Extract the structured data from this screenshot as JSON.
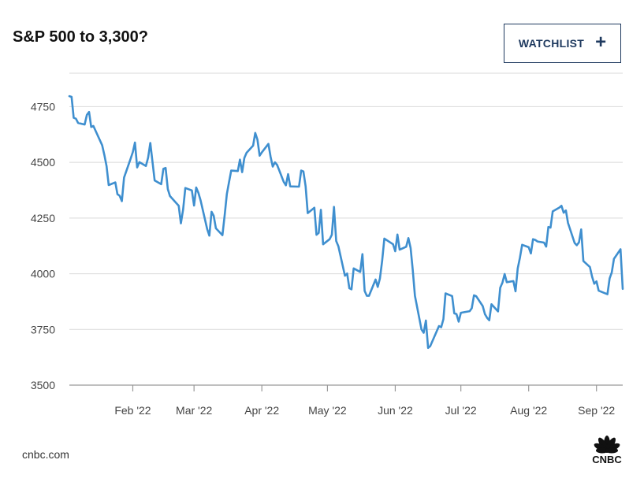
{
  "header": {
    "title": "S&P 500 to 3,300?",
    "watchlist_label": "WATCHLIST",
    "plus_symbol": "+"
  },
  "footer": {
    "source": "cnbc.com",
    "logo_text": "CNBC"
  },
  "colors": {
    "line": "#3f8fcf",
    "grid": "#d9d9d9",
    "axis": "#999999",
    "button_border": "#1f3a5f"
  },
  "chart_data": {
    "type": "line",
    "title": "S&P 500 to 3,300?",
    "xlabel": "",
    "ylabel": "",
    "ylim": [
      3500,
      4900
    ],
    "yticks": [
      3500,
      3750,
      4000,
      4250,
      4500,
      4750
    ],
    "ytick_labels": [
      "3500",
      "3750",
      "4000",
      "4250",
      "4500",
      "4750"
    ],
    "grid": true,
    "x_start": "2022-01-03",
    "x_end": "2022-09-13",
    "xticks": [
      {
        "label": "Feb '22",
        "date": "2022-02-01"
      },
      {
        "label": "Mar '22",
        "date": "2022-03-01"
      },
      {
        "label": "Apr '22",
        "date": "2022-04-01"
      },
      {
        "label": "May '22",
        "date": "2022-05-01"
      },
      {
        "label": "Jun '22",
        "date": "2022-06-01"
      },
      {
        "label": "Jul '22",
        "date": "2022-07-01"
      },
      {
        "label": "Aug '22",
        "date": "2022-08-01"
      },
      {
        "label": "Sep '22",
        "date": "2022-09-01"
      }
    ],
    "series": [
      {
        "points": [
          [
            "2022-01-03",
            4797
          ],
          [
            "2022-01-04",
            4794
          ],
          [
            "2022-01-05",
            4700
          ],
          [
            "2022-01-06",
            4696
          ],
          [
            "2022-01-07",
            4677
          ],
          [
            "2022-01-10",
            4670
          ],
          [
            "2022-01-11",
            4713
          ],
          [
            "2022-01-12",
            4726
          ],
          [
            "2022-01-13",
            4659
          ],
          [
            "2022-01-14",
            4663
          ],
          [
            "2022-01-18",
            4577
          ],
          [
            "2022-01-19",
            4533
          ],
          [
            "2022-01-20",
            4483
          ],
          [
            "2022-01-21",
            4398
          ],
          [
            "2022-01-24",
            4410
          ],
          [
            "2022-01-25",
            4357
          ],
          [
            "2022-01-26",
            4350
          ],
          [
            "2022-01-27",
            4326
          ],
          [
            "2022-01-28",
            4432
          ],
          [
            "2022-01-31",
            4516
          ],
          [
            "2022-02-01",
            4546
          ],
          [
            "2022-02-02",
            4589
          ],
          [
            "2022-02-03",
            4477
          ],
          [
            "2022-02-04",
            4501
          ],
          [
            "2022-02-07",
            4484
          ],
          [
            "2022-02-08",
            4521
          ],
          [
            "2022-02-09",
            4587
          ],
          [
            "2022-02-10",
            4504
          ],
          [
            "2022-02-11",
            4419
          ],
          [
            "2022-02-14",
            4402
          ],
          [
            "2022-02-15",
            4471
          ],
          [
            "2022-02-16",
            4475
          ],
          [
            "2022-02-17",
            4380
          ],
          [
            "2022-02-18",
            4349
          ],
          [
            "2022-02-22",
            4305
          ],
          [
            "2022-02-23",
            4226
          ],
          [
            "2022-02-24",
            4288
          ],
          [
            "2022-02-25",
            4385
          ],
          [
            "2022-02-28",
            4374
          ],
          [
            "2022-03-01",
            4306
          ],
          [
            "2022-03-02",
            4387
          ],
          [
            "2022-03-03",
            4363
          ],
          [
            "2022-03-04",
            4329
          ],
          [
            "2022-03-07",
            4201
          ],
          [
            "2022-03-08",
            4171
          ],
          [
            "2022-03-09",
            4278
          ],
          [
            "2022-03-10",
            4260
          ],
          [
            "2022-03-11",
            4204
          ],
          [
            "2022-03-14",
            4173
          ],
          [
            "2022-03-15",
            4262
          ],
          [
            "2022-03-16",
            4358
          ],
          [
            "2022-03-17",
            4412
          ],
          [
            "2022-03-18",
            4463
          ],
          [
            "2022-03-21",
            4461
          ],
          [
            "2022-03-22",
            4512
          ],
          [
            "2022-03-23",
            4456
          ],
          [
            "2022-03-24",
            4520
          ],
          [
            "2022-03-25",
            4543
          ],
          [
            "2022-03-28",
            4575
          ],
          [
            "2022-03-29",
            4632
          ],
          [
            "2022-03-30",
            4602
          ],
          [
            "2022-03-31",
            4530
          ],
          [
            "2022-04-01",
            4545
          ],
          [
            "2022-04-04",
            4583
          ],
          [
            "2022-04-05",
            4525
          ],
          [
            "2022-04-06",
            4481
          ],
          [
            "2022-04-07",
            4500
          ],
          [
            "2022-04-08",
            4488
          ],
          [
            "2022-04-11",
            4413
          ],
          [
            "2022-04-12",
            4397
          ],
          [
            "2022-04-13",
            4447
          ],
          [
            "2022-04-14",
            4392
          ],
          [
            "2022-04-18",
            4391
          ],
          [
            "2022-04-19",
            4463
          ],
          [
            "2022-04-20",
            4459
          ],
          [
            "2022-04-21",
            4393
          ],
          [
            "2022-04-22",
            4272
          ],
          [
            "2022-04-25",
            4296
          ],
          [
            "2022-04-26",
            4175
          ],
          [
            "2022-04-27",
            4183
          ],
          [
            "2022-04-28",
            4287
          ],
          [
            "2022-04-29",
            4132
          ],
          [
            "2022-05-02",
            4155
          ],
          [
            "2022-05-03",
            4175
          ],
          [
            "2022-05-04",
            4300
          ],
          [
            "2022-05-05",
            4147
          ],
          [
            "2022-05-06",
            4123
          ],
          [
            "2022-05-09",
            3991
          ],
          [
            "2022-05-10",
            4001
          ],
          [
            "2022-05-11",
            3935
          ],
          [
            "2022-05-12",
            3930
          ],
          [
            "2022-05-13",
            4024
          ],
          [
            "2022-05-16",
            4008
          ],
          [
            "2022-05-17",
            4088
          ],
          [
            "2022-05-18",
            3923
          ],
          [
            "2022-05-19",
            3901
          ],
          [
            "2022-05-20",
            3901
          ],
          [
            "2022-05-23",
            3974
          ],
          [
            "2022-05-24",
            3941
          ],
          [
            "2022-05-25",
            3979
          ],
          [
            "2022-05-26",
            4058
          ],
          [
            "2022-05-27",
            4158
          ],
          [
            "2022-05-31",
            4132
          ],
          [
            "2022-06-01",
            4101
          ],
          [
            "2022-06-02",
            4176
          ],
          [
            "2022-06-03",
            4108
          ],
          [
            "2022-06-06",
            4121
          ],
          [
            "2022-06-07",
            4160
          ],
          [
            "2022-06-08",
            4116
          ],
          [
            "2022-06-09",
            4018
          ],
          [
            "2022-06-10",
            3901
          ],
          [
            "2022-06-13",
            3750
          ],
          [
            "2022-06-14",
            3735
          ],
          [
            "2022-06-15",
            3790
          ],
          [
            "2022-06-16",
            3667
          ],
          [
            "2022-06-17",
            3675
          ],
          [
            "2022-06-21",
            3765
          ],
          [
            "2022-06-22",
            3760
          ],
          [
            "2022-06-23",
            3796
          ],
          [
            "2022-06-24",
            3912
          ],
          [
            "2022-06-27",
            3900
          ],
          [
            "2022-06-28",
            3822
          ],
          [
            "2022-06-29",
            3819
          ],
          [
            "2022-06-30",
            3785
          ],
          [
            "2022-07-01",
            3825
          ],
          [
            "2022-07-05",
            3832
          ],
          [
            "2022-07-06",
            3845
          ],
          [
            "2022-07-07",
            3903
          ],
          [
            "2022-07-08",
            3899
          ],
          [
            "2022-07-11",
            3855
          ],
          [
            "2022-07-12",
            3819
          ],
          [
            "2022-07-13",
            3802
          ],
          [
            "2022-07-14",
            3791
          ],
          [
            "2022-07-15",
            3863
          ],
          [
            "2022-07-18",
            3831
          ],
          [
            "2022-07-19",
            3937
          ],
          [
            "2022-07-20",
            3960
          ],
          [
            "2022-07-21",
            3999
          ],
          [
            "2022-07-22",
            3962
          ],
          [
            "2022-07-25",
            3967
          ],
          [
            "2022-07-26",
            3921
          ],
          [
            "2022-07-27",
            4024
          ],
          [
            "2022-07-28",
            4072
          ],
          [
            "2022-07-29",
            4130
          ],
          [
            "2022-08-01",
            4119
          ],
          [
            "2022-08-02",
            4091
          ],
          [
            "2022-08-03",
            4155
          ],
          [
            "2022-08-04",
            4152
          ],
          [
            "2022-08-05",
            4145
          ],
          [
            "2022-08-08",
            4140
          ],
          [
            "2022-08-09",
            4122
          ],
          [
            "2022-08-10",
            4210
          ],
          [
            "2022-08-11",
            4207
          ],
          [
            "2022-08-12",
            4280
          ],
          [
            "2022-08-15",
            4297
          ],
          [
            "2022-08-16",
            4305
          ],
          [
            "2022-08-17",
            4274
          ],
          [
            "2022-08-18",
            4284
          ],
          [
            "2022-08-19",
            4228
          ],
          [
            "2022-08-22",
            4138
          ],
          [
            "2022-08-23",
            4128
          ],
          [
            "2022-08-24",
            4141
          ],
          [
            "2022-08-25",
            4199
          ],
          [
            "2022-08-26",
            4057
          ],
          [
            "2022-08-29",
            4030
          ],
          [
            "2022-08-30",
            3986
          ],
          [
            "2022-08-31",
            3955
          ],
          [
            "2022-09-01",
            3966
          ],
          [
            "2022-09-02",
            3924
          ],
          [
            "2022-09-06",
            3908
          ],
          [
            "2022-09-07",
            3979
          ],
          [
            "2022-09-08",
            4006
          ],
          [
            "2022-09-09",
            4067
          ],
          [
            "2022-09-12",
            4110
          ],
          [
            "2022-09-13",
            3932
          ]
        ]
      }
    ]
  }
}
